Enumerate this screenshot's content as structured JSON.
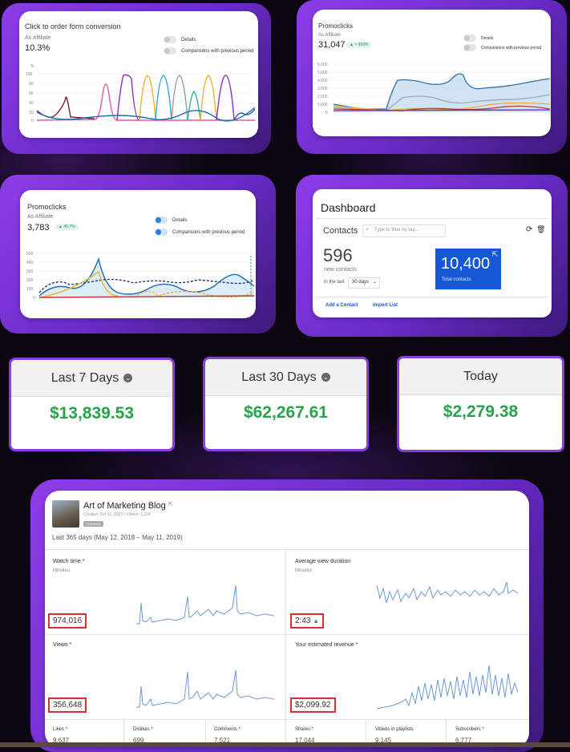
{
  "panel1": {
    "title": "Click to order form conversion",
    "subtitle": "As Affiliate",
    "value": "10.3%",
    "toggle_details": "Details",
    "toggle_compare": "Comparisons with previous period",
    "y_unit": "%",
    "y_ticks": [
      "100",
      "80",
      "60",
      "40",
      "20",
      "0"
    ]
  },
  "panel2": {
    "title": "Promoclicks",
    "subtitle": "As Affiliate",
    "value": "31,047",
    "badge": "▲ > 999%",
    "toggle_details": "Details",
    "toggle_compare": "Comparisons with previous period",
    "y_ticks": [
      "6,000",
      "5,000",
      "4,000",
      "3,000",
      "2,000",
      "1,000",
      "0"
    ]
  },
  "panel3": {
    "title": "Promoclicks",
    "subtitle": "As Affiliate",
    "value": "3,783",
    "badge": "▲ 45.7%",
    "toggle_details": "Details",
    "toggle_compare": "Comparisons with previous period",
    "y_ticks": [
      "500",
      "400",
      "300",
      "200",
      "100",
      "0"
    ]
  },
  "dashboard": {
    "title": "Dashboard",
    "contacts_label": "Contacts",
    "filter_placeholder": "Type to filter by tag...",
    "new_count": "596",
    "new_label": "new contacts",
    "in_last": "in the last",
    "period": "30 days",
    "total": "10,400",
    "total_label": "Total contacts",
    "add_contact": "Add a Contact",
    "import_list": "Import List",
    "accent": "#1558d6"
  },
  "stats": [
    {
      "label": "Last 7 Days",
      "amount": "$13,839.53"
    },
    {
      "label": "Last 30 Days",
      "amount": "$62,267.61"
    },
    {
      "label": "Today",
      "amount": "$2,279.38"
    }
  ],
  "youtube": {
    "channel": "Art of Marketing Blog",
    "meta": "Created: Oct 11, 2013  •  Videos: 1,224",
    "tag": "CHANNEL",
    "range": "Last 365 days (May 12, 2018 – May 11, 2019)",
    "watch_time": {
      "label": "Watch time *",
      "unit": "Minutes",
      "value": "974,016"
    },
    "avg_duration": {
      "label": "Average view duration",
      "unit": "Minutes",
      "value": "2:43"
    },
    "views": {
      "label": "Views *",
      "value": "356,648"
    },
    "revenue": {
      "label": "Your estimated revenue *",
      "value": "$2,099.92"
    },
    "bottom": [
      {
        "label": "Likes *",
        "value": "9,637"
      },
      {
        "label": "Dislikes *",
        "value": "699"
      },
      {
        "label": "Comments *",
        "value": "7,521"
      },
      {
        "label": "Shares *",
        "value": "17,044"
      },
      {
        "label": "Videos in playlists",
        "value": "9,145"
      },
      {
        "label": "Subscribers *",
        "value": "6,777"
      }
    ]
  }
}
